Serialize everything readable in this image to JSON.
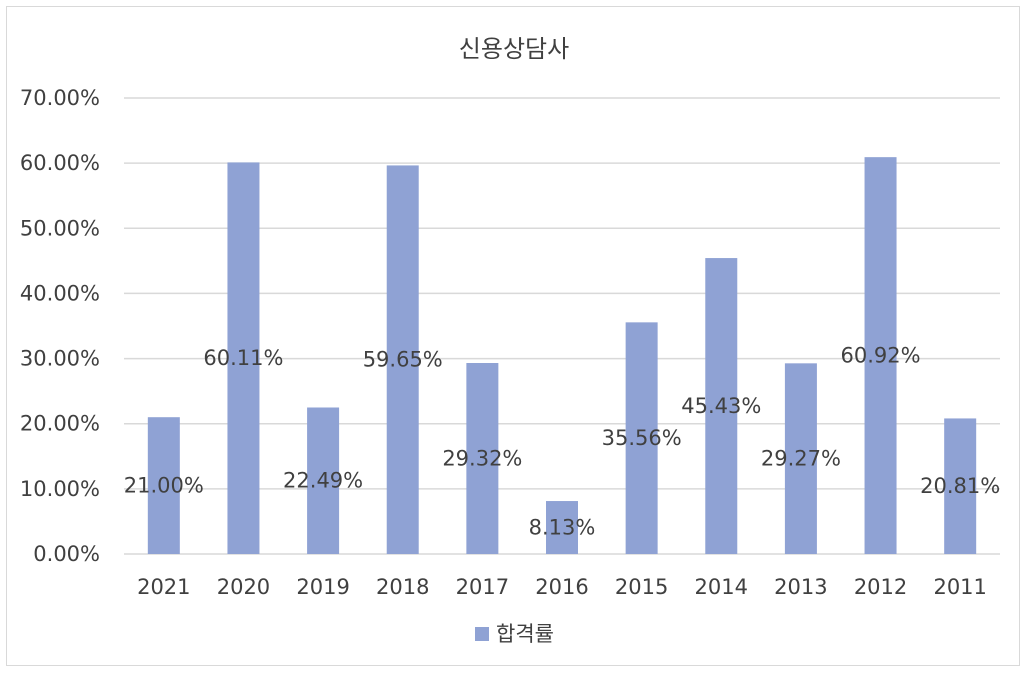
{
  "chart_data": {
    "type": "bar",
    "title": "신용상담사",
    "categories": [
      "2021",
      "2020",
      "2019",
      "2018",
      "2017",
      "2016",
      "2015",
      "2014",
      "2013",
      "2012",
      "2011"
    ],
    "series": [
      {
        "name": "합격률",
        "values": [
          21.0,
          60.11,
          22.49,
          59.65,
          29.32,
          8.13,
          35.56,
          45.43,
          29.27,
          60.92,
          20.81
        ],
        "labels": [
          "21.00%",
          "60.11%",
          "22.49%",
          "59.65%",
          "29.32%",
          "8.13%",
          "35.56%",
          "45.43%",
          "29.27%",
          "60.92%",
          "20.81%"
        ],
        "color": "#8fa2d4"
      }
    ],
    "ylim": [
      0,
      70
    ],
    "yticks": [
      0,
      10,
      20,
      30,
      40,
      50,
      60,
      70
    ],
    "ytick_labels": [
      "0.00%",
      "10.00%",
      "20.00%",
      "30.00%",
      "40.00%",
      "50.00%",
      "60.00%",
      "70.00%"
    ],
    "grid": true,
    "legend_position": "bottom",
    "gridline_color": "#d9d9d9"
  }
}
